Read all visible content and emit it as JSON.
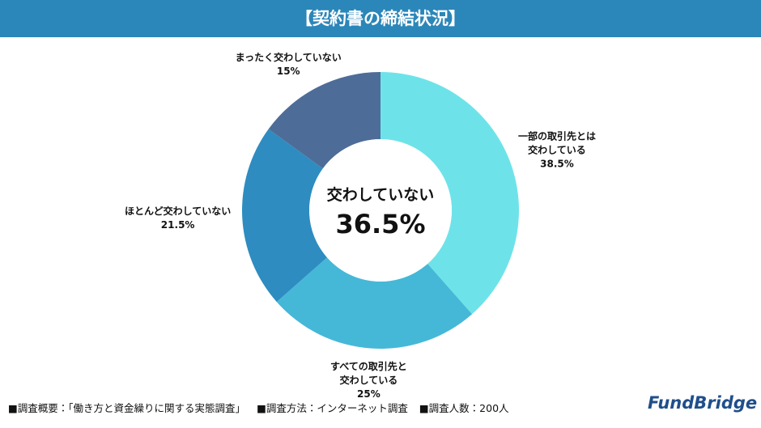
{
  "chart_data": {
    "type": "donut",
    "title": "【契約書の締結状況】",
    "categories": [
      "一部の取引先とは\n交わしている",
      "すべての取引先と\n交わしている",
      "ほとんど交わしていない",
      "まったく交わしていない"
    ],
    "values": [
      38.5,
      25,
      21.5,
      15
    ],
    "value_labels": [
      "38.5%",
      "25%",
      "21.5%",
      "15%"
    ],
    "colors": [
      "#6de3e9",
      "#45b8d8",
      "#2e8cc0",
      "#4e6c98"
    ],
    "center_label": "交わしていない",
    "center_value_label": "36.5%"
  },
  "footer": [
    "■調査概要：「働き方と資金繰りに関する実態調査」",
    "■調査方法：インターネット調査",
    "■調査人数：200人"
  ],
  "logo": "FundBridge"
}
